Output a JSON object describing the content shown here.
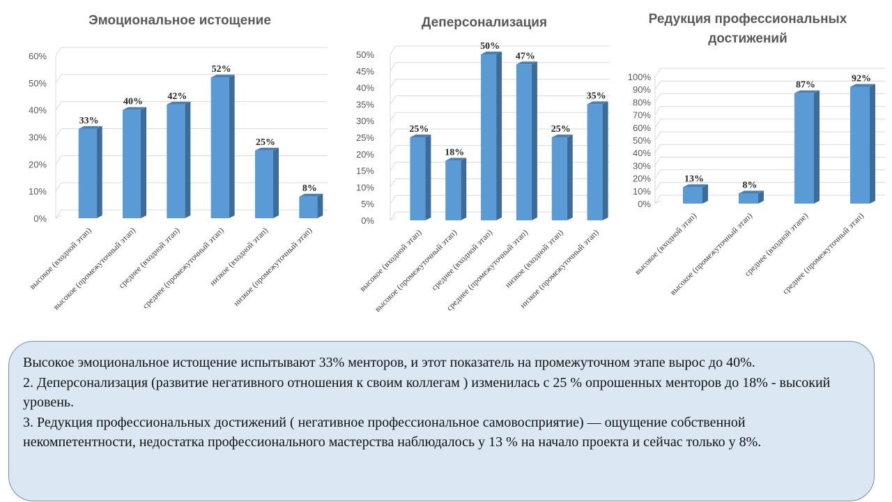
{
  "colors": {
    "bar_front": "#5b9bd5",
    "bar_side": "#3b6c9a",
    "bar_top": "#4a80b3",
    "grid": "#d9d9d9"
  },
  "chart_data": [
    {
      "type": "bar",
      "title": [
        "Эмоциональное истощение"
      ],
      "categories": [
        "высокое (входной этап)",
        "высокое (промежуточный этап)",
        "среднее (входной этап)",
        "среднее (промежуточный этап)",
        "низкое (входной этап)",
        "низкое (промежуточный этап)"
      ],
      "values": [
        33,
        40,
        42,
        52,
        25,
        8
      ],
      "data_labels": [
        "33%",
        "40%",
        "42%",
        "52%",
        "25%",
        "8%"
      ],
      "yticks": [
        "0%",
        "10%",
        "20%",
        "30%",
        "40%",
        "50%",
        "60%"
      ],
      "ylim": [
        0,
        60
      ],
      "grid": true
    },
    {
      "type": "bar",
      "title": [
        "Деперсонализация"
      ],
      "categories": [
        "высокое (входной этап)",
        "высокое (промежуточный этап)",
        "среднее (входной этап)",
        "среднее (промежуточный этап)",
        "низкое (входной этап)",
        "низкое (промежуточный этап)"
      ],
      "values": [
        25,
        18,
        50,
        47,
        25,
        35
      ],
      "data_labels": [
        "25%",
        "18%",
        "50%",
        "47%",
        "25%",
        "35%"
      ],
      "yticks": [
        "0%",
        "5%",
        "10%",
        "15%",
        "20%",
        "25%",
        "30%",
        "35%",
        "40%",
        "45%",
        "50%"
      ],
      "ylim": [
        0,
        50
      ],
      "grid": true
    },
    {
      "type": "bar",
      "title": [
        "Редукция профессиональных",
        "достижений"
      ],
      "categories": [
        "высокое (входной этап)",
        "высокое (промежуточный этап)",
        "среднее (входной этапе)",
        "среднее (промежуточный этап)"
      ],
      "values": [
        13,
        8,
        87,
        92
      ],
      "data_labels": [
        "13%",
        "8%",
        "87%",
        "92%"
      ],
      "yticks": [
        "0%",
        "10%",
        "20%",
        "30%",
        "40%",
        "50%",
        "60%",
        "70%",
        "80%",
        "90%",
        "100%"
      ],
      "ylim": [
        0,
        100
      ],
      "grid": true
    }
  ],
  "summary": {
    "p1": "Высокое эмоциональное истощение испытывают 33% менторов, и этот показатель на промежуточном этапе вырос до 40%.",
    "p2": "2. Деперсонализация (развитие негативного отношения к своим коллегам ) изменилась с  25 % опрошенных менторов до 18% - высокий уровень.",
    "p3": "3. Редукция профессиональных достижений ( негативное профессиональное самовосприятие) — ощущение собственной некомпетентности, недостатка профессионального мастерства наблюдалось у 13 % на начало проекта и сейчас только у 8%."
  }
}
